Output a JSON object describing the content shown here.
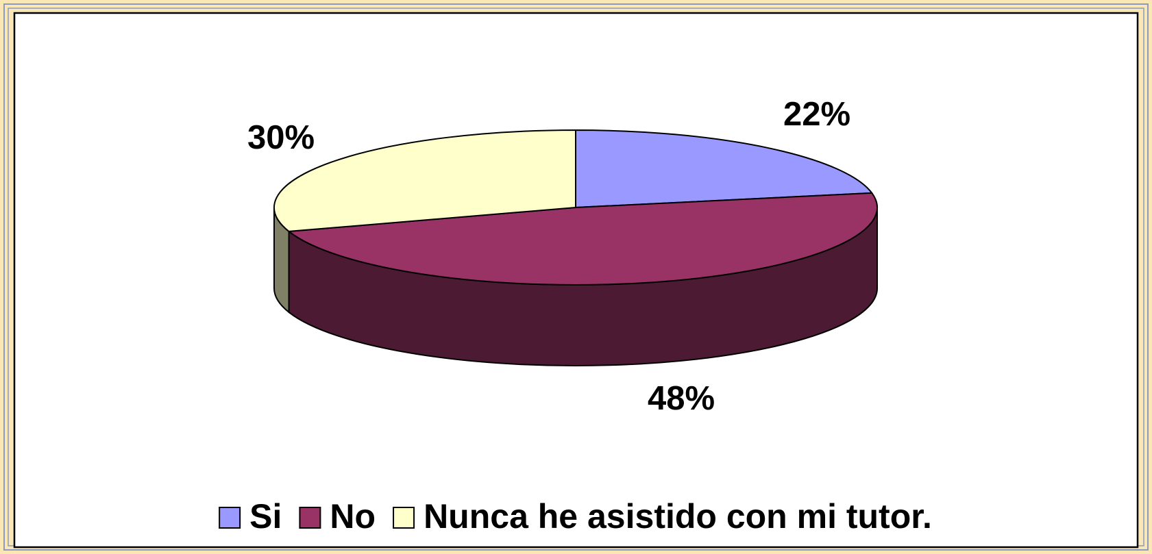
{
  "chart_data": {
    "type": "pie",
    "categories": [
      "Si",
      "No",
      "Nunca he asistido con mi tutor."
    ],
    "values": [
      22,
      48,
      30
    ],
    "value_labels": [
      "22%",
      "48%",
      "30%"
    ],
    "colors": [
      "#9999ff",
      "#993366",
      "#ffffcc"
    ],
    "side_colors": [
      "#4d4d80",
      "#4d1a33",
      "#808066"
    ],
    "legend": "bottom"
  }
}
